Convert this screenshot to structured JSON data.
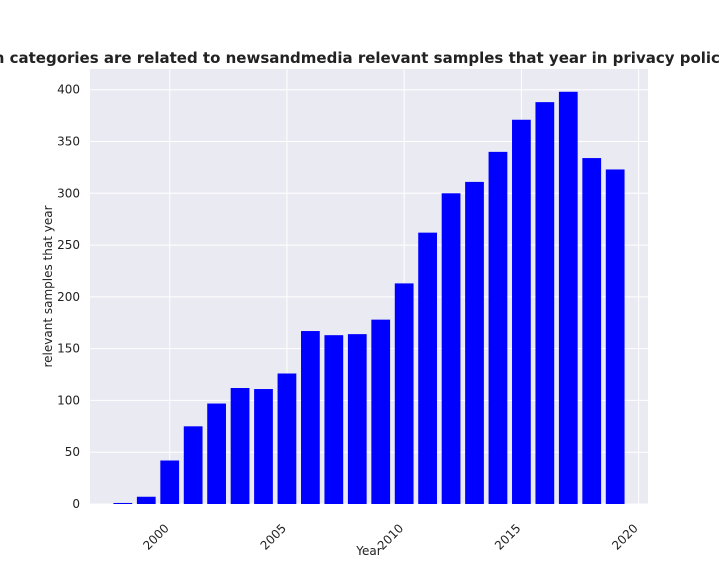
{
  "chart_data": {
    "type": "bar",
    "title": "Years when categories are related to newsandmedia relevant samples that year in privacy policies by Year",
    "xlabel": "Year",
    "ylabel": "relevant samples that year",
    "x": [
      1998,
      1999,
      2000,
      2001,
      2002,
      2003,
      2004,
      2005,
      2006,
      2007,
      2008,
      2009,
      2010,
      2011,
      2012,
      2013,
      2014,
      2015,
      2016,
      2017,
      2018,
      2019
    ],
    "values": [
      1,
      7,
      42,
      75,
      97,
      112,
      111,
      126,
      167,
      163,
      164,
      178,
      213,
      262,
      300,
      311,
      340,
      371,
      388,
      398,
      334,
      323
    ],
    "xlim": [
      1996.6,
      2020.4
    ],
    "ylim": [
      0,
      420
    ],
    "xticks": [
      2000,
      2005,
      2010,
      2015,
      2020
    ],
    "yticks": [
      0,
      50,
      100,
      150,
      200,
      250,
      300,
      350,
      400
    ],
    "bar_color": "#0000ff",
    "background_color": "#eaeaf2",
    "grid": true,
    "legend": "none"
  }
}
